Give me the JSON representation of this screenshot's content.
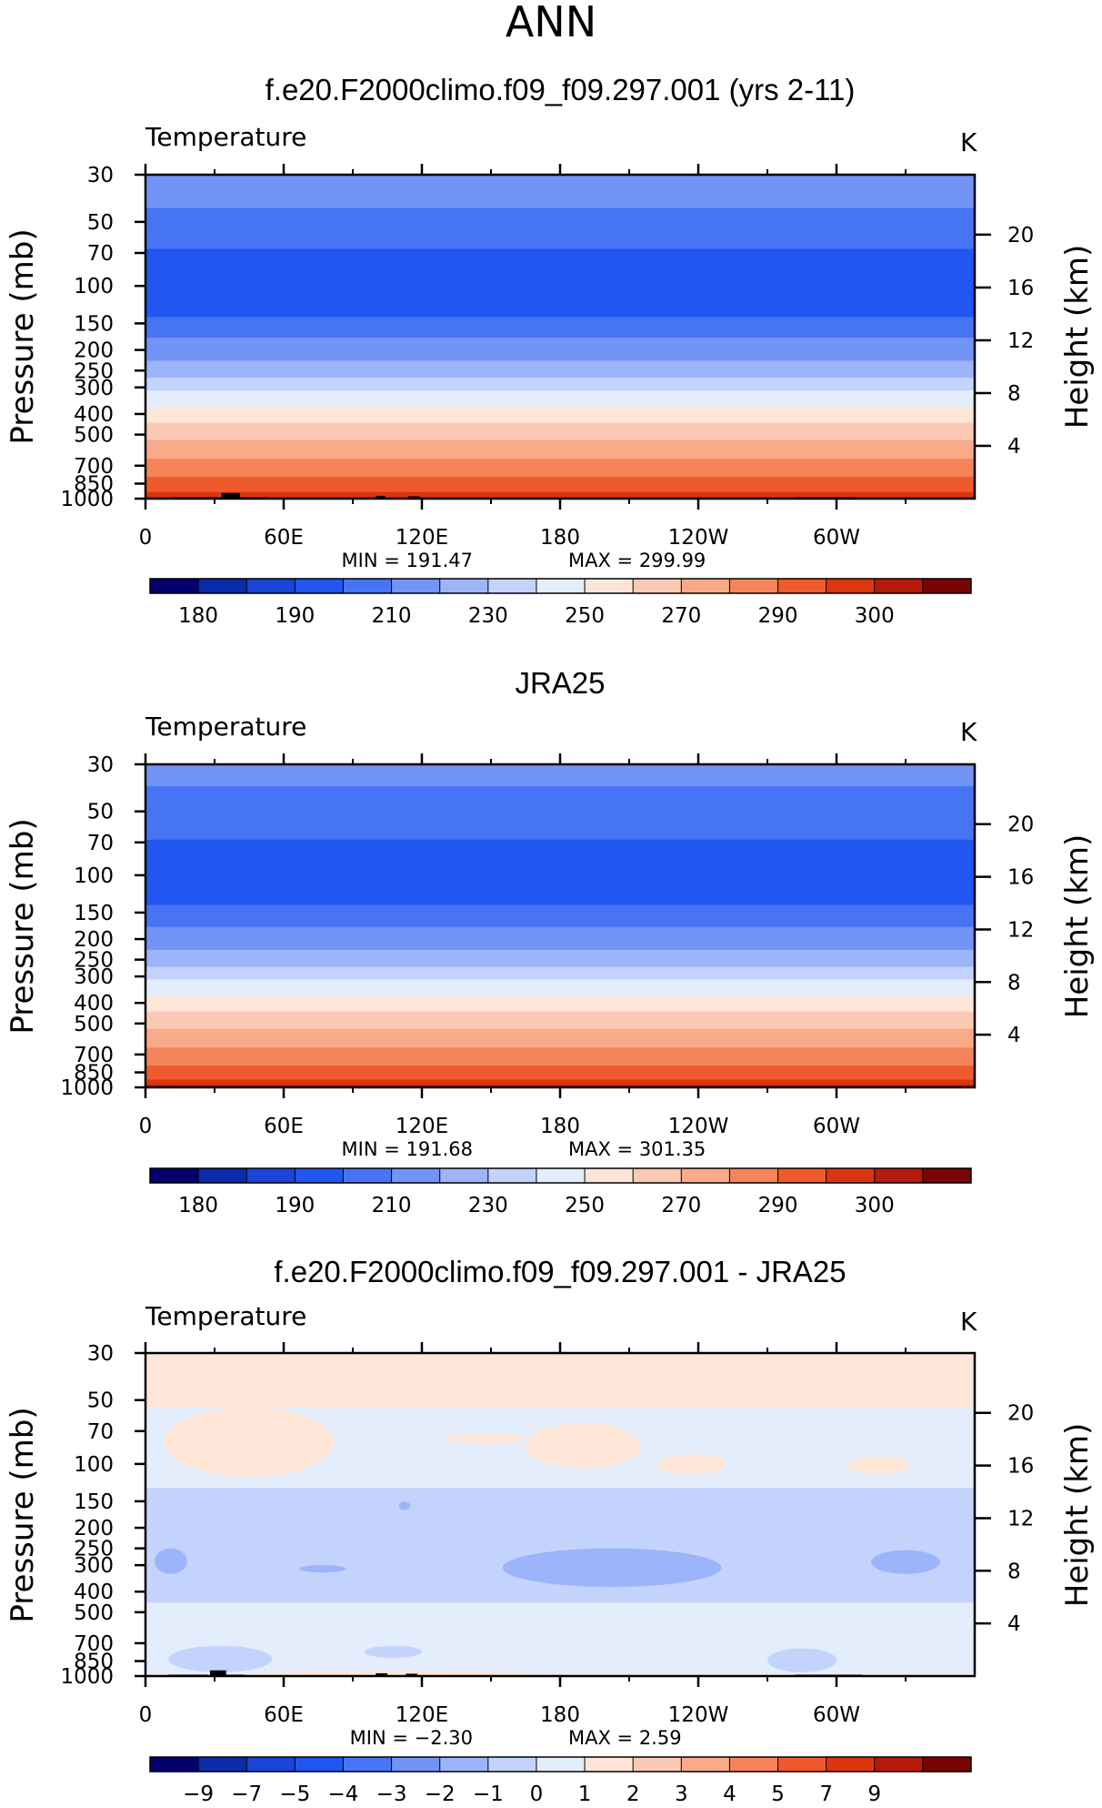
{
  "figure": {
    "title": "ANN",
    "colors": {
      "land_mask": "#000000",
      "frame": "#000000",
      "background": "#ffffff"
    }
  },
  "abs_colorbar": {
    "colors": [
      "#03006e",
      "#0a2bab",
      "#1a45d8",
      "#2256f0",
      "#4774f5",
      "#7294f7",
      "#9cb4f9",
      "#c3d3fb",
      "#e3edfc",
      "#fde6d7",
      "#fbcab4",
      "#f9aa88",
      "#f5845b",
      "#ef5a2c",
      "#dc3610",
      "#b51b0a",
      "#7a0403"
    ],
    "labels": [
      "180",
      "190",
      "210",
      "230",
      "250",
      "270",
      "290",
      "300"
    ]
  },
  "diff_colorbar": {
    "colors": [
      "#03006e",
      "#0a2bab",
      "#1a45d8",
      "#2256f0",
      "#4774f5",
      "#7294f7",
      "#9cb4f9",
      "#c3d3fb",
      "#e3edfc",
      "#fde6d7",
      "#fbcab4",
      "#f9aa88",
      "#f5845b",
      "#ef5a2c",
      "#dc3610",
      "#b51b0a",
      "#7a0403"
    ],
    "labels": [
      "−9",
      "−7",
      "−5",
      "−4",
      "−3",
      "−2",
      "−1",
      "0",
      "1",
      "2",
      "3",
      "4",
      "5",
      "7",
      "9"
    ]
  },
  "chart_data": [
    {
      "type": "heatmap",
      "title": "f.e20.F2000climo.f09_f09.297.001 (yrs 2-11)",
      "variable_label": "Temperature",
      "units": "K",
      "ylabel": "Pressure (mb)",
      "ylabel_right": "Height (km)",
      "x_ticks": [
        "0",
        "60E",
        "120E",
        "180",
        "120W",
        "60W"
      ],
      "x_tick_lon": [
        0,
        60,
        120,
        180,
        240,
        300
      ],
      "xlim": [
        0,
        360
      ],
      "y_ticks": [
        "30",
        "50",
        "70",
        "100",
        "150",
        "200",
        "250",
        "300",
        "400",
        "500",
        "700",
        "850",
        "1000"
      ],
      "y_tick_p": [
        30,
        50,
        70,
        100,
        150,
        200,
        250,
        300,
        400,
        500,
        700,
        850,
        1000
      ],
      "ylim_mb": [
        1000,
        30
      ],
      "y_scale": "log",
      "right_ticks": [
        "20",
        "16",
        "12",
        "8",
        "4"
      ],
      "right_tick_km": [
        20,
        16,
        12,
        8,
        4
      ],
      "min_label": "MIN = 191.47",
      "max_label": "MAX = 299.99",
      "min": 191.47,
      "max": 299.99,
      "profile": [
        {
          "p": 30,
          "ci": 5
        },
        {
          "p": 43,
          "ci": 4
        },
        {
          "p": 67,
          "ci": 3
        },
        {
          "p": 140,
          "ci": 4
        },
        {
          "p": 175,
          "ci": 5
        },
        {
          "p": 225,
          "ci": 6
        },
        {
          "p": 270,
          "ci": 7
        },
        {
          "p": 310,
          "ci": 8
        },
        {
          "p": 370,
          "ci": 9
        },
        {
          "p": 440,
          "ci": 10
        },
        {
          "p": 530,
          "ci": 11
        },
        {
          "p": 650,
          "ci": 12
        },
        {
          "p": 790,
          "ci": 13
        },
        {
          "p": 930,
          "ci": 14
        },
        {
          "p": 985,
          "ci": 15
        }
      ],
      "land_blocks": [
        {
          "lon0": 12,
          "lon1": 32,
          "p": 985
        },
        {
          "lon0": 33,
          "lon1": 41,
          "p": 940
        },
        {
          "lon0": 41,
          "lon1": 53,
          "p": 985
        },
        {
          "lon0": 100,
          "lon1": 104,
          "p": 970
        },
        {
          "lon0": 114,
          "lon1": 119,
          "p": 975
        },
        {
          "lon0": 282,
          "lon1": 308,
          "p": 985
        }
      ]
    },
    {
      "type": "heatmap",
      "title": "JRA25",
      "variable_label": "Temperature",
      "units": "K",
      "ylabel": "Pressure (mb)",
      "ylabel_right": "Height (km)",
      "x_ticks": [
        "0",
        "60E",
        "120E",
        "180",
        "120W",
        "60W"
      ],
      "x_tick_lon": [
        0,
        60,
        120,
        180,
        240,
        300
      ],
      "xlim": [
        0,
        360
      ],
      "y_ticks": [
        "30",
        "50",
        "70",
        "100",
        "150",
        "200",
        "250",
        "300",
        "400",
        "500",
        "700",
        "850",
        "1000"
      ],
      "y_tick_p": [
        30,
        50,
        70,
        100,
        150,
        200,
        250,
        300,
        400,
        500,
        700,
        850,
        1000
      ],
      "ylim_mb": [
        1000,
        30
      ],
      "y_scale": "log",
      "right_ticks": [
        "20",
        "16",
        "12",
        "8",
        "4"
      ],
      "right_tick_km": [
        20,
        16,
        12,
        8,
        4
      ],
      "min_label": "MIN = 191.68",
      "max_label": "MAX = 301.35",
      "min": 191.68,
      "max": 301.35,
      "profile": [
        {
          "p": 30,
          "ci": 5
        },
        {
          "p": 38,
          "ci": 4
        },
        {
          "p": 68,
          "ci": 3
        },
        {
          "p": 138,
          "ci": 4
        },
        {
          "p": 175,
          "ci": 5
        },
        {
          "p": 225,
          "ci": 6
        },
        {
          "p": 270,
          "ci": 7
        },
        {
          "p": 310,
          "ci": 8
        },
        {
          "p": 370,
          "ci": 9
        },
        {
          "p": 440,
          "ci": 10
        },
        {
          "p": 530,
          "ci": 11
        },
        {
          "p": 650,
          "ci": 12
        },
        {
          "p": 790,
          "ci": 13
        },
        {
          "p": 920,
          "ci": 14
        },
        {
          "p": 975,
          "ci": 15
        }
      ],
      "land_blocks": []
    },
    {
      "type": "heatmap",
      "title": "f.e20.F2000climo.f09_f09.297.001 - JRA25",
      "variable_label": "Temperature",
      "units": "K",
      "ylabel": "Pressure (mb)",
      "ylabel_right": "Height (km)",
      "x_ticks": [
        "0",
        "60E",
        "120E",
        "180",
        "120W",
        "60W"
      ],
      "x_tick_lon": [
        0,
        60,
        120,
        180,
        240,
        300
      ],
      "xlim": [
        0,
        360
      ],
      "y_ticks": [
        "30",
        "50",
        "70",
        "100",
        "150",
        "200",
        "250",
        "300",
        "400",
        "500",
        "700",
        "850",
        "1000"
      ],
      "y_tick_p": [
        30,
        50,
        70,
        100,
        150,
        200,
        250,
        300,
        400,
        500,
        700,
        850,
        1000
      ],
      "ylim_mb": [
        1000,
        30
      ],
      "y_scale": "log",
      "right_ticks": [
        "20",
        "16",
        "12",
        "8",
        "4"
      ],
      "right_tick_km": [
        20,
        16,
        12,
        8,
        4
      ],
      "min_label": "MIN = −2.30",
      "max_label": "MAX = 2.59",
      "min": -2.3,
      "max": 2.59,
      "profile": [
        {
          "p": 30,
          "ci": 9
        },
        {
          "p": 54,
          "ci": 8
        },
        {
          "p": 130,
          "ci": 7
        },
        {
          "p": 450,
          "ci": 8
        },
        {
          "p": 980,
          "ci": 9
        }
      ],
      "patches": [
        {
          "lon0": 8,
          "lon1": 82,
          "p0": 54,
          "p1": 115,
          "ci": 9
        },
        {
          "lon0": 130,
          "lon1": 165,
          "p0": 72,
          "p1": 80,
          "ci": 9
        },
        {
          "lon0": 165,
          "lon1": 215,
          "p0": 64,
          "p1": 105,
          "ci": 9
        },
        {
          "lon0": 222,
          "lon1": 252,
          "p0": 90,
          "p1": 112,
          "ci": 9
        },
        {
          "lon0": 305,
          "lon1": 332,
          "p0": 92,
          "p1": 112,
          "ci": 9
        },
        {
          "lon0": 155,
          "lon1": 250,
          "p0": 250,
          "p1": 380,
          "ci": 6
        },
        {
          "lon0": 315,
          "lon1": 345,
          "p0": 255,
          "p1": 330,
          "ci": 6
        },
        {
          "lon0": 4,
          "lon1": 18,
          "p0": 250,
          "p1": 330,
          "ci": 6
        },
        {
          "lon0": 67,
          "lon1": 87,
          "p0": 300,
          "p1": 325,
          "ci": 6
        },
        {
          "lon0": 110,
          "lon1": 115,
          "p0": 150,
          "p1": 165,
          "ci": 6
        },
        {
          "lon0": 10,
          "lon1": 55,
          "p0": 720,
          "p1": 960,
          "ci": 7
        },
        {
          "lon0": 95,
          "lon1": 120,
          "p0": 720,
          "p1": 820,
          "ci": 7
        },
        {
          "lon0": 270,
          "lon1": 300,
          "p0": 740,
          "p1": 960,
          "ci": 7
        },
        {
          "lon0": 48,
          "lon1": 170,
          "p0": 950,
          "p1": 1000,
          "ci": 9
        }
      ],
      "land_blocks": [
        {
          "lon0": 10,
          "lon1": 27,
          "p": 985
        },
        {
          "lon0": 28,
          "lon1": 35,
          "p": 940
        },
        {
          "lon0": 35,
          "lon1": 43,
          "p": 985
        },
        {
          "lon0": 100,
          "lon1": 105,
          "p": 970
        },
        {
          "lon0": 113,
          "lon1": 118,
          "p": 975
        },
        {
          "lon0": 282,
          "lon1": 311,
          "p": 985
        }
      ]
    }
  ]
}
